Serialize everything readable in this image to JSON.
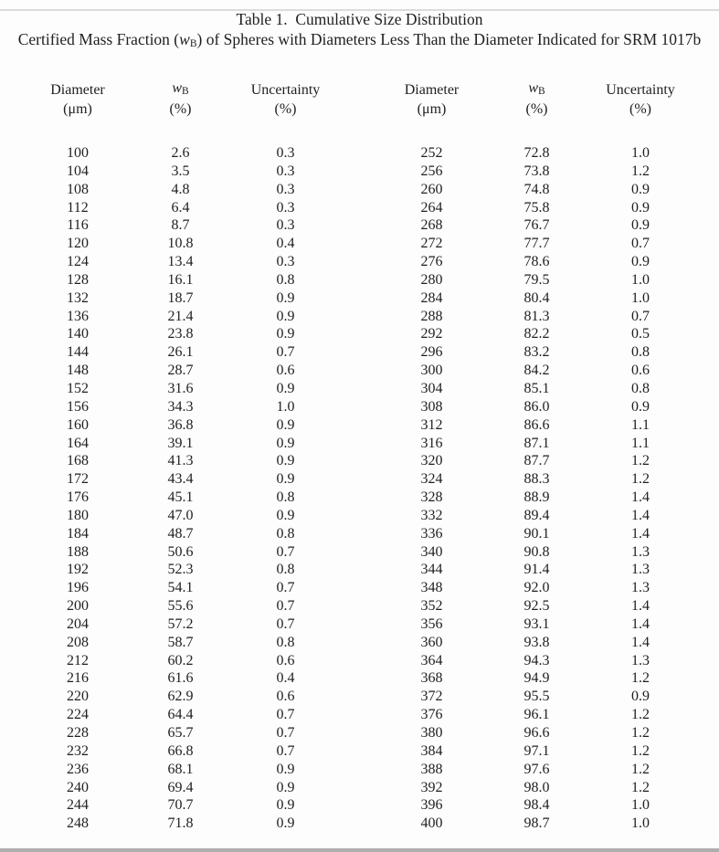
{
  "page": {
    "title": "Table 1.  Cumulative Size Distribution",
    "subtitle": {
      "pre": "Certified Mass Fraction (",
      "symbol": "w",
      "symbol_sub": "B",
      "post": ") of Spheres with Diameters Less Than the Diameter Indicated for SRM 1017b"
    }
  },
  "table": {
    "column_headers": {
      "diameter": "Diameter",
      "diameter_unit": "(μm)",
      "wb_symbol": "w",
      "wb_sub": "B",
      "wb_unit": "(%)",
      "uncertainty": "Uncertainty",
      "uncertainty_unit": "(%)"
    },
    "left_rows": [
      [
        "100",
        "2.6",
        "0.3"
      ],
      [
        "104",
        "3.5",
        "0.3"
      ],
      [
        "108",
        "4.8",
        "0.3"
      ],
      [
        "112",
        "6.4",
        "0.3"
      ],
      [
        "116",
        "8.7",
        "0.3"
      ],
      [
        "120",
        "10.8",
        "0.4"
      ],
      [
        "124",
        "13.4",
        "0.3"
      ],
      [
        "128",
        "16.1",
        "0.8"
      ],
      [
        "132",
        "18.7",
        "0.9"
      ],
      [
        "136",
        "21.4",
        "0.9"
      ],
      [
        "140",
        "23.8",
        "0.9"
      ],
      [
        "144",
        "26.1",
        "0.7"
      ],
      [
        "148",
        "28.7",
        "0.6"
      ],
      [
        "152",
        "31.6",
        "0.9"
      ],
      [
        "156",
        "34.3",
        "1.0"
      ],
      [
        "160",
        "36.8",
        "0.9"
      ],
      [
        "164",
        "39.1",
        "0.9"
      ],
      [
        "168",
        "41.3",
        "0.9"
      ],
      [
        "172",
        "43.4",
        "0.9"
      ],
      [
        "176",
        "45.1",
        "0.8"
      ],
      [
        "180",
        "47.0",
        "0.9"
      ],
      [
        "184",
        "48.7",
        "0.8"
      ],
      [
        "188",
        "50.6",
        "0.7"
      ],
      [
        "192",
        "52.3",
        "0.8"
      ],
      [
        "196",
        "54.1",
        "0.7"
      ],
      [
        "200",
        "55.6",
        "0.7"
      ],
      [
        "204",
        "57.2",
        "0.7"
      ],
      [
        "208",
        "58.7",
        "0.8"
      ],
      [
        "212",
        "60.2",
        "0.6"
      ],
      [
        "216",
        "61.6",
        "0.4"
      ],
      [
        "220",
        "62.9",
        "0.6"
      ],
      [
        "224",
        "64.4",
        "0.7"
      ],
      [
        "228",
        "65.7",
        "0.7"
      ],
      [
        "232",
        "66.8",
        "0.7"
      ],
      [
        "236",
        "68.1",
        "0.9"
      ],
      [
        "240",
        "69.4",
        "0.9"
      ],
      [
        "244",
        "70.7",
        "0.9"
      ],
      [
        "248",
        "71.8",
        "0.9"
      ]
    ],
    "right_rows": [
      [
        "252",
        "72.8",
        "1.0"
      ],
      [
        "256",
        "73.8",
        "1.2"
      ],
      [
        "260",
        "74.8",
        "0.9"
      ],
      [
        "264",
        "75.8",
        "0.9"
      ],
      [
        "268",
        "76.7",
        "0.9"
      ],
      [
        "272",
        "77.7",
        "0.7"
      ],
      [
        "276",
        "78.6",
        "0.9"
      ],
      [
        "280",
        "79.5",
        "1.0"
      ],
      [
        "284",
        "80.4",
        "1.0"
      ],
      [
        "288",
        "81.3",
        "0.7"
      ],
      [
        "292",
        "82.2",
        "0.5"
      ],
      [
        "296",
        "83.2",
        "0.8"
      ],
      [
        "300",
        "84.2",
        "0.6"
      ],
      [
        "304",
        "85.1",
        "0.8"
      ],
      [
        "308",
        "86.0",
        "0.9"
      ],
      [
        "312",
        "86.6",
        "1.1"
      ],
      [
        "316",
        "87.1",
        "1.1"
      ],
      [
        "320",
        "87.7",
        "1.2"
      ],
      [
        "324",
        "88.3",
        "1.2"
      ],
      [
        "328",
        "88.9",
        "1.4"
      ],
      [
        "332",
        "89.4",
        "1.4"
      ],
      [
        "336",
        "90.1",
        "1.4"
      ],
      [
        "340",
        "90.8",
        "1.3"
      ],
      [
        "344",
        "91.4",
        "1.3"
      ],
      [
        "348",
        "92.0",
        "1.3"
      ],
      [
        "352",
        "92.5",
        "1.4"
      ],
      [
        "356",
        "93.1",
        "1.4"
      ],
      [
        "360",
        "93.8",
        "1.4"
      ],
      [
        "364",
        "94.3",
        "1.3"
      ],
      [
        "368",
        "94.9",
        "1.2"
      ],
      [
        "372",
        "95.5",
        "0.9"
      ],
      [
        "376",
        "96.1",
        "1.2"
      ],
      [
        "380",
        "96.6",
        "1.2"
      ],
      [
        "384",
        "97.1",
        "1.2"
      ],
      [
        "388",
        "97.6",
        "1.2"
      ],
      [
        "392",
        "98.0",
        "1.2"
      ],
      [
        "396",
        "98.4",
        "1.0"
      ],
      [
        "400",
        "98.7",
        "1.0"
      ]
    ]
  },
  "colors": {
    "text": "#1f1f1f",
    "background": "#fdfdfd"
  }
}
